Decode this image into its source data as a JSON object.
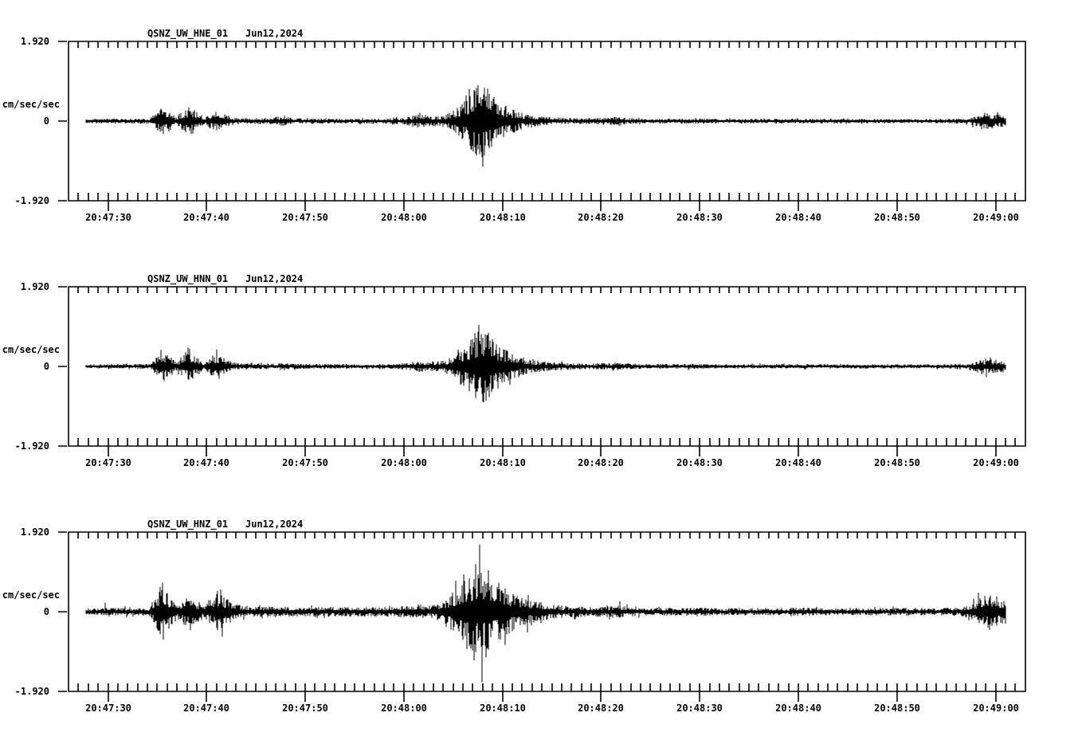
{
  "page": {
    "background": "#ffffff",
    "ink": "#000000"
  },
  "chart_data": [
    {
      "type": "line",
      "subtype": "seismogram",
      "title": "QSNZ_UW_HNE_01",
      "date": "Jun12,2024",
      "ylabel": "cm/sec/sec",
      "ylim": [
        -1.92,
        1.92
      ],
      "grid": false,
      "yticks": [
        {
          "value": 1.92,
          "label": "1.920"
        },
        {
          "value": 0,
          "label": "0"
        },
        {
          "value": -1.92,
          "label": "-1.920"
        }
      ],
      "t_origin": "20:47:26",
      "xticks": [
        {
          "t": 4,
          "label": "20:47:30"
        },
        {
          "t": 14,
          "label": "20:47:40"
        },
        {
          "t": 24,
          "label": "20:47:50"
        },
        {
          "t": 34,
          "label": "20:48:00"
        },
        {
          "t": 44,
          "label": "20:48:10"
        },
        {
          "t": 54,
          "label": "20:48:20"
        },
        {
          "t": 64,
          "label": "20:48:30"
        },
        {
          "t": 74,
          "label": "20:48:40"
        },
        {
          "t": 84,
          "label": "20:48:50"
        },
        {
          "t": 94,
          "label": "20:49:00"
        }
      ],
      "trace": {
        "start_t": 1.8,
        "end_t": 95.0,
        "envelope": [
          [
            1.8,
            0.05
          ],
          [
            8.3,
            0.055
          ],
          [
            8.8,
            0.18
          ],
          [
            9.5,
            0.27
          ],
          [
            10.4,
            0.2
          ],
          [
            10.9,
            0.08
          ],
          [
            11.5,
            0.22
          ],
          [
            12.3,
            0.3
          ],
          [
            13.2,
            0.18
          ],
          [
            13.8,
            0.09
          ],
          [
            14.3,
            0.16
          ],
          [
            15.0,
            0.2
          ],
          [
            16.1,
            0.13
          ],
          [
            17.0,
            0.07
          ],
          [
            20.5,
            0.06
          ],
          [
            21.3,
            0.1
          ],
          [
            22.0,
            0.09
          ],
          [
            23.0,
            0.055
          ],
          [
            32.0,
            0.05
          ],
          [
            33.0,
            0.08
          ],
          [
            33.6,
            0.055
          ],
          [
            34.5,
            0.1
          ],
          [
            35.5,
            0.15
          ],
          [
            36.8,
            0.12
          ],
          [
            37.6,
            0.1
          ],
          [
            38.5,
            0.16
          ],
          [
            39.5,
            0.3
          ],
          [
            40.5,
            0.5
          ],
          [
            41.2,
            0.72
          ],
          [
            41.9,
            0.9
          ],
          [
            42.5,
            0.68
          ],
          [
            43.2,
            0.5
          ],
          [
            44.0,
            0.36
          ],
          [
            45.0,
            0.26
          ],
          [
            46.4,
            0.14
          ],
          [
            48.0,
            0.1
          ],
          [
            50.0,
            0.075
          ],
          [
            52.5,
            0.06
          ],
          [
            55.0,
            0.09
          ],
          [
            55.8,
            0.11
          ],
          [
            56.5,
            0.07
          ],
          [
            58.0,
            0.05
          ],
          [
            64.0,
            0.06
          ],
          [
            66.0,
            0.045
          ],
          [
            79.0,
            0.055
          ],
          [
            81.0,
            0.045
          ],
          [
            88.0,
            0.045
          ],
          [
            91.0,
            0.055
          ],
          [
            91.8,
            0.1
          ],
          [
            92.8,
            0.17
          ],
          [
            94.0,
            0.15
          ],
          [
            95.0,
            0.13
          ]
        ],
        "spikes": [
          [
            9.4,
            0.3
          ],
          [
            12.2,
            0.33
          ],
          [
            12.6,
            -0.3
          ],
          [
            35.6,
            0.2
          ],
          [
            40.3,
            0.62
          ],
          [
            40.9,
            -0.7
          ],
          [
            41.5,
            0.87
          ],
          [
            41.9,
            -0.87
          ],
          [
            42.2,
            0.8
          ],
          [
            42.6,
            -0.6
          ],
          [
            92.9,
            0.2
          ]
        ]
      }
    },
    {
      "type": "line",
      "subtype": "seismogram",
      "title": "QSNZ_UW_HNN_01",
      "date": "Jun12,2024",
      "ylabel": "cm/sec/sec",
      "ylim": [
        -1.92,
        1.92
      ],
      "grid": false,
      "yticks": [
        {
          "value": 1.92,
          "label": "1.920"
        },
        {
          "value": 0,
          "label": "0"
        },
        {
          "value": -1.92,
          "label": "-1.920"
        }
      ],
      "t_origin": "20:47:26",
      "xticks": [
        {
          "t": 4,
          "label": "20:47:30"
        },
        {
          "t": 14,
          "label": "20:47:40"
        },
        {
          "t": 24,
          "label": "20:47:50"
        },
        {
          "t": 34,
          "label": "20:48:00"
        },
        {
          "t": 44,
          "label": "20:48:10"
        },
        {
          "t": 54,
          "label": "20:48:20"
        },
        {
          "t": 64,
          "label": "20:48:30"
        },
        {
          "t": 74,
          "label": "20:48:40"
        },
        {
          "t": 84,
          "label": "20:48:50"
        },
        {
          "t": 94,
          "label": "20:49:00"
        }
      ],
      "trace": {
        "start_t": 1.8,
        "end_t": 95.0,
        "envelope": [
          [
            1.8,
            0.05
          ],
          [
            8.3,
            0.055
          ],
          [
            8.8,
            0.2
          ],
          [
            9.5,
            0.3
          ],
          [
            10.4,
            0.22
          ],
          [
            10.9,
            0.08
          ],
          [
            11.5,
            0.22
          ],
          [
            12.3,
            0.3
          ],
          [
            13.2,
            0.18
          ],
          [
            13.8,
            0.08
          ],
          [
            14.3,
            0.18
          ],
          [
            15.0,
            0.25
          ],
          [
            16.1,
            0.14
          ],
          [
            17.0,
            0.07
          ],
          [
            21.0,
            0.06
          ],
          [
            21.8,
            0.09
          ],
          [
            22.6,
            0.055
          ],
          [
            33.0,
            0.05
          ],
          [
            34.5,
            0.09
          ],
          [
            35.5,
            0.12
          ],
          [
            36.8,
            0.1
          ],
          [
            38.0,
            0.12
          ],
          [
            39.0,
            0.22
          ],
          [
            40.0,
            0.4
          ],
          [
            41.0,
            0.6
          ],
          [
            41.9,
            0.88
          ],
          [
            42.6,
            0.7
          ],
          [
            43.5,
            0.48
          ],
          [
            44.5,
            0.33
          ],
          [
            46.0,
            0.18
          ],
          [
            48.0,
            0.11
          ],
          [
            50.0,
            0.08
          ],
          [
            53.0,
            0.06
          ],
          [
            55.0,
            0.08
          ],
          [
            55.8,
            0.1
          ],
          [
            56.6,
            0.065
          ],
          [
            58.5,
            0.05
          ],
          [
            63.0,
            0.055
          ],
          [
            65.0,
            0.045
          ],
          [
            88.0,
            0.045
          ],
          [
            91.0,
            0.055
          ],
          [
            92.0,
            0.12
          ],
          [
            92.8,
            0.16
          ],
          [
            94.0,
            0.15
          ],
          [
            95.0,
            0.12
          ]
        ],
        "spikes": [
          [
            9.4,
            0.4
          ],
          [
            9.7,
            -0.35
          ],
          [
            12.3,
            0.42
          ],
          [
            12.6,
            -0.3
          ],
          [
            15.0,
            0.38
          ],
          [
            15.3,
            -0.3
          ],
          [
            40.6,
            -0.6
          ],
          [
            41.2,
            0.8
          ],
          [
            41.6,
            1.0
          ],
          [
            42.0,
            -0.85
          ],
          [
            42.4,
            0.75
          ],
          [
            43.0,
            -0.55
          ],
          [
            93.0,
            0.19
          ]
        ]
      }
    },
    {
      "type": "line",
      "subtype": "seismogram",
      "title": "QSNZ_UW_HNZ_01",
      "date": "Jun12,2024",
      "ylabel": "cm/sec/sec",
      "ylim": [
        -1.92,
        1.92
      ],
      "grid": false,
      "yticks": [
        {
          "value": 1.92,
          "label": "1.920"
        },
        {
          "value": 0,
          "label": "0"
        },
        {
          "value": -1.92,
          "label": "-1.920"
        }
      ],
      "t_origin": "20:47:26",
      "xticks": [
        {
          "t": 4,
          "label": "20:47:30"
        },
        {
          "t": 14,
          "label": "20:47:40"
        },
        {
          "t": 24,
          "label": "20:47:50"
        },
        {
          "t": 34,
          "label": "20:48:00"
        },
        {
          "t": 44,
          "label": "20:48:10"
        },
        {
          "t": 54,
          "label": "20:48:20"
        },
        {
          "t": 64,
          "label": "20:48:30"
        },
        {
          "t": 74,
          "label": "20:48:40"
        },
        {
          "t": 84,
          "label": "20:48:50"
        },
        {
          "t": 94,
          "label": "20:49:00"
        }
      ],
      "trace": {
        "start_t": 1.8,
        "end_t": 95.0,
        "envelope": [
          [
            1.8,
            0.07
          ],
          [
            8.2,
            0.09
          ],
          [
            8.7,
            0.3
          ],
          [
            9.3,
            0.5
          ],
          [
            10.3,
            0.35
          ],
          [
            11.0,
            0.16
          ],
          [
            11.6,
            0.26
          ],
          [
            12.4,
            0.32
          ],
          [
            13.3,
            0.2
          ],
          [
            13.9,
            0.15
          ],
          [
            14.4,
            0.3
          ],
          [
            15.2,
            0.42
          ],
          [
            16.3,
            0.25
          ],
          [
            17.5,
            0.13
          ],
          [
            19.0,
            0.1
          ],
          [
            20.8,
            0.13
          ],
          [
            21.6,
            0.1
          ],
          [
            23.0,
            0.1
          ],
          [
            33.0,
            0.1
          ],
          [
            34.5,
            0.13
          ],
          [
            35.5,
            0.16
          ],
          [
            36.8,
            0.13
          ],
          [
            37.6,
            0.18
          ],
          [
            38.6,
            0.35
          ],
          [
            39.6,
            0.55
          ],
          [
            40.6,
            0.75
          ],
          [
            41.5,
            0.92
          ],
          [
            42.2,
            0.88
          ],
          [
            43.0,
            0.72
          ],
          [
            43.8,
            0.58
          ],
          [
            44.8,
            0.44
          ],
          [
            45.8,
            0.33
          ],
          [
            47.0,
            0.24
          ],
          [
            48.5,
            0.17
          ],
          [
            50.0,
            0.13
          ],
          [
            53.0,
            0.1
          ],
          [
            55.0,
            0.12
          ],
          [
            55.8,
            0.15
          ],
          [
            56.8,
            0.1
          ],
          [
            58.5,
            0.08
          ],
          [
            64.0,
            0.09
          ],
          [
            66.0,
            0.075
          ],
          [
            75.0,
            0.085
          ],
          [
            77.0,
            0.07
          ],
          [
            85.0,
            0.08
          ],
          [
            88.0,
            0.075
          ],
          [
            90.5,
            0.09
          ],
          [
            91.7,
            0.18
          ],
          [
            92.8,
            0.38
          ],
          [
            94.0,
            0.33
          ],
          [
            95.0,
            0.28
          ]
        ],
        "spikes": [
          [
            3.7,
            0.22
          ],
          [
            9.3,
            0.6
          ],
          [
            9.6,
            -0.67
          ],
          [
            12.4,
            -0.45
          ],
          [
            15.1,
            0.5
          ],
          [
            15.6,
            -0.6
          ],
          [
            39.3,
            0.75
          ],
          [
            40.1,
            0.9
          ],
          [
            40.4,
            -0.9
          ],
          [
            41.3,
            1.15
          ],
          [
            41.7,
            1.62
          ],
          [
            41.95,
            -1.7
          ],
          [
            42.3,
            -1.1
          ],
          [
            42.6,
            1.0
          ],
          [
            44.3,
            -0.8
          ],
          [
            46.5,
            -0.5
          ],
          [
            55.9,
            0.25
          ],
          [
            92.3,
            0.46
          ],
          [
            93.4,
            -0.44
          ]
        ]
      }
    }
  ]
}
